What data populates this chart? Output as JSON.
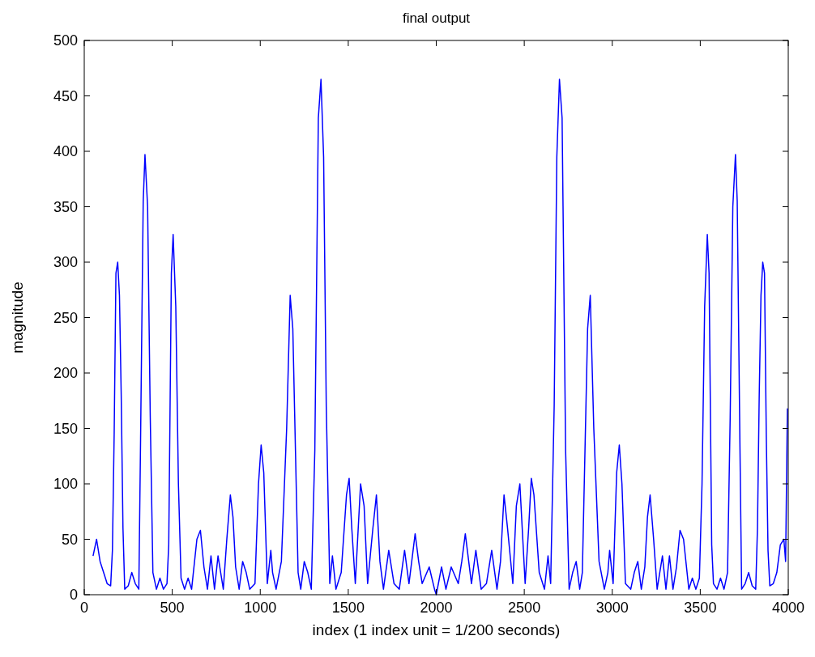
{
  "chart_data": {
    "type": "line",
    "title": "final output",
    "xlabel": "index (1 index unit = 1/200 seconds)",
    "ylabel": "magnitude",
    "x": [
      50,
      70,
      90,
      110,
      130,
      150,
      160,
      170,
      180,
      190,
      200,
      210,
      220,
      230,
      250,
      270,
      290,
      310,
      320,
      335,
      345,
      360,
      375,
      390,
      410,
      430,
      450,
      470,
      480,
      495,
      505,
      520,
      535,
      550,
      570,
      590,
      610,
      640,
      660,
      680,
      700,
      720,
      740,
      760,
      790,
      810,
      830,
      845,
      860,
      880,
      900,
      920,
      940,
      970,
      990,
      1005,
      1020,
      1040,
      1060,
      1070,
      1090,
      1120,
      1150,
      1170,
      1185,
      1200,
      1215,
      1230,
      1250,
      1270,
      1290,
      1310,
      1330,
      1345,
      1360,
      1375,
      1395,
      1410,
      1430,
      1460,
      1490,
      1505,
      1520,
      1540,
      1570,
      1590,
      1610,
      1640,
      1660,
      1680,
      1700,
      1730,
      1760,
      1790,
      1820,
      1845,
      1880,
      1900,
      1920,
      1960,
      1990,
      2000,
      2030,
      2055,
      2085,
      2125,
      2145,
      2165,
      2200,
      2225,
      2255,
      2285,
      2315,
      2345,
      2365,
      2385,
      2405,
      2435,
      2455,
      2475,
      2505,
      2525,
      2540,
      2555,
      2585,
      2615,
      2635,
      2650,
      2670,
      2685,
      2700,
      2715,
      2735,
      2755,
      2775,
      2795,
      2815,
      2830,
      2845,
      2860,
      2875,
      2895,
      2925,
      2955,
      2975,
      2985,
      3005,
      3025,
      3040,
      3055,
      3075,
      3105,
      3125,
      3145,
      3165,
      3185,
      3200,
      3215,
      3235,
      3255,
      3285,
      3305,
      3325,
      3345,
      3365,
      3385,
      3405,
      3435,
      3455,
      3475,
      3495,
      3510,
      3525,
      3540,
      3550,
      3565,
      3575,
      3595,
      3615,
      3635,
      3655,
      3670,
      3685,
      3700,
      3710,
      3725,
      3735,
      3755,
      3775,
      3795,
      3815,
      3825,
      3835,
      3845,
      3855,
      3865,
      3875,
      3885,
      3895,
      3915,
      3935,
      3955,
      3975,
      3985,
      3995
    ],
    "series": [
      {
        "color": "#0000ff",
        "values": [
          35,
          50,
          30,
          20,
          10,
          8,
          40,
          145,
          290,
          300,
          270,
          180,
          60,
          5,
          8,
          20,
          10,
          5,
          140,
          355,
          397,
          350,
          160,
          20,
          5,
          15,
          5,
          10,
          45,
          290,
          325,
          260,
          100,
          15,
          5,
          15,
          5,
          50,
          58,
          25,
          5,
          35,
          5,
          35,
          5,
          50,
          90,
          70,
          25,
          5,
          30,
          20,
          5,
          10,
          100,
          135,
          110,
          10,
          40,
          20,
          5,
          30,
          150,
          270,
          240,
          130,
          20,
          5,
          30,
          20,
          5,
          130,
          430,
          465,
          395,
          170,
          10,
          35,
          5,
          20,
          90,
          105,
          60,
          10,
          100,
          80,
          10,
          60,
          90,
          30,
          5,
          40,
          10,
          5,
          40,
          10,
          55,
          30,
          10,
          25,
          5,
          0,
          25,
          5,
          25,
          10,
          30,
          55,
          10,
          40,
          5,
          10,
          40,
          5,
          30,
          90,
          60,
          10,
          80,
          100,
          10,
          60,
          105,
          90,
          20,
          5,
          35,
          10,
          170,
          395,
          465,
          430,
          130,
          5,
          20,
          30,
          5,
          20,
          130,
          240,
          270,
          150,
          30,
          5,
          20,
          40,
          10,
          110,
          135,
          100,
          10,
          5,
          20,
          30,
          5,
          25,
          70,
          90,
          50,
          5,
          35,
          5,
          35,
          5,
          25,
          58,
          50,
          5,
          15,
          5,
          15,
          100,
          260,
          325,
          290,
          45,
          10,
          5,
          15,
          5,
          20,
          160,
          350,
          397,
          355,
          140,
          5,
          10,
          20,
          8,
          5,
          60,
          180,
          270,
          300,
          290,
          145,
          40,
          8,
          10,
          20,
          45,
          50,
          30,
          168
        ]
      }
    ],
    "xlim": [
      0,
      4000
    ],
    "xticks": [
      0,
      500,
      1000,
      1500,
      2000,
      2500,
      3000,
      3500,
      4000
    ],
    "ylim": [
      0,
      500
    ],
    "yticks": [
      0,
      50,
      100,
      150,
      200,
      250,
      300,
      350,
      400,
      450,
      500
    ],
    "grid": false,
    "line_style": "solid"
  }
}
